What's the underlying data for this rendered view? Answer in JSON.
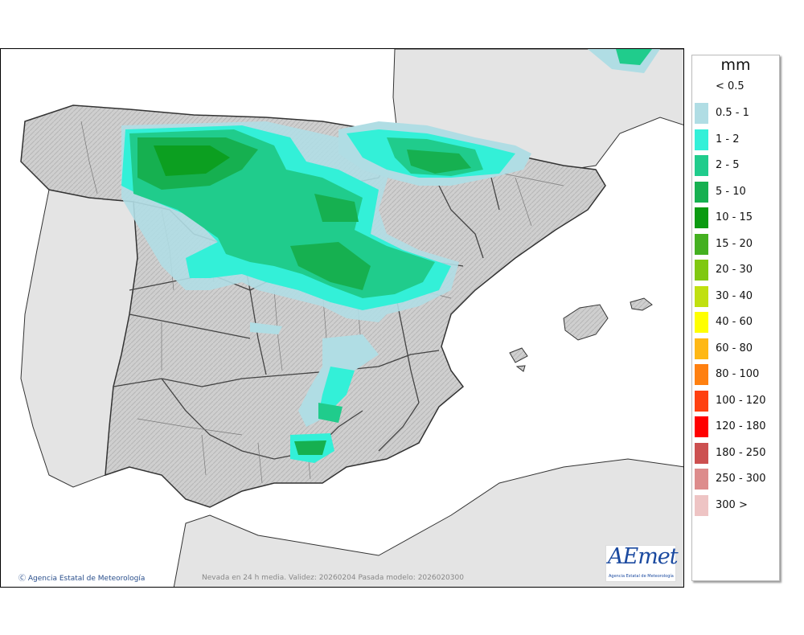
{
  "map": {
    "credit": "Agencia Estatal de Meteorología",
    "validity_text": "Nevada en 24 h media. Validez: 20260204 Pasada modelo: 2026020300",
    "logo": {
      "text": "AEmet",
      "subtitle": "Agencia Estatal de Meteorología"
    },
    "colors": {
      "sea": "#ffffff",
      "land_foreign": "#e4e4e4",
      "land_spain": "#c9c9c9",
      "borders": "#333333"
    }
  },
  "legend": {
    "unit": "mm",
    "below_threshold": "< 0.5",
    "items": [
      {
        "label": "0.5 - 1",
        "color": "#b0dde4"
      },
      {
        "label": "1 - 2",
        "color": "#33f0d8"
      },
      {
        "label": "2 - 5",
        "color": "#20cc8c"
      },
      {
        "label": "5 - 10",
        "color": "#16b050"
      },
      {
        "label": "10 - 15",
        "color": "#0a9a10"
      },
      {
        "label": "15 - 20",
        "color": "#44b020"
      },
      {
        "label": "20 - 30",
        "color": "#80c810"
      },
      {
        "label": "30 - 40",
        "color": "#c0e010"
      },
      {
        "label": "40 - 60",
        "color": "#ffff00"
      },
      {
        "label": "60 - 80",
        "color": "#ffb814"
      },
      {
        "label": "80 - 100",
        "color": "#ff8010"
      },
      {
        "label": "100 - 120",
        "color": "#ff4010"
      },
      {
        "label": "120 - 180",
        "color": "#ff0000"
      },
      {
        "label": "180 - 250",
        "color": "#cc5050"
      },
      {
        "label": "250 - 300",
        "color": "#dd8c8c"
      },
      {
        "label": "300 >",
        "color": "#eec4c4"
      }
    ]
  }
}
